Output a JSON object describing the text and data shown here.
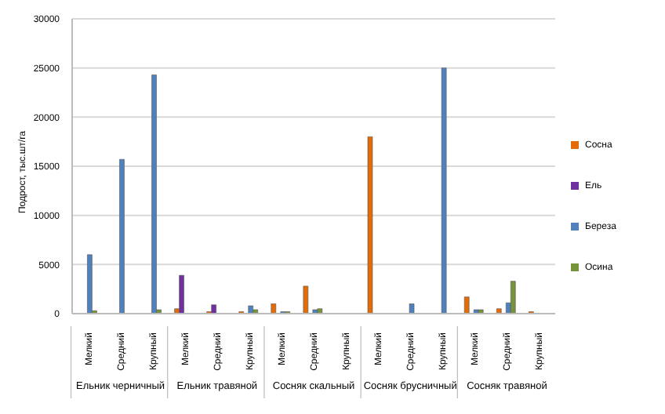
{
  "chart_data": {
    "type": "bar",
    "ylabel": "Подрост, тыс.шт/га",
    "categories": [
      "Мелкий",
      "Средний",
      "Крупный",
      "Мелкий",
      "Средний",
      "Крупный",
      "Мелкий",
      "Средний",
      "Крупный",
      "Мелкий",
      "Средний",
      "Крупный",
      "Мелкий",
      "Средний",
      "Крупный"
    ],
    "series": [
      {
        "name": "Сосна",
        "color": "#e36c09",
        "values": [
          null,
          null,
          null,
          500,
          200,
          200,
          1000,
          2800,
          null,
          18000,
          null,
          null,
          1700,
          500,
          200
        ]
      },
      {
        "name": "Ель",
        "color": "#7030a0",
        "values": [
          null,
          null,
          null,
          3900,
          900,
          null,
          null,
          null,
          null,
          null,
          null,
          null,
          null,
          null,
          null
        ]
      },
      {
        "name": "Береза",
        "color": "#4f81bd",
        "values": [
          6000,
          15700,
          24300,
          null,
          null,
          800,
          200,
          400,
          null,
          null,
          1000,
          25000,
          400,
          1100,
          null
        ]
      },
      {
        "name": "Осина",
        "color": "#77933c",
        "values": [
          300,
          null,
          400,
          null,
          null,
          400,
          200,
          500,
          null,
          null,
          null,
          null,
          400,
          3300,
          null
        ]
      }
    ],
    "annotations": [
      "Ельник черничный",
      "Ельник травяной",
      "Сосняк скальный",
      "Сосняк брусничный",
      "Сосняк травяной"
    ],
    "ylim": [
      0,
      30000
    ],
    "yticks": [
      0,
      5000,
      10000,
      15000,
      20000,
      25000,
      30000
    ],
    "grid": "y",
    "legend": "right"
  }
}
